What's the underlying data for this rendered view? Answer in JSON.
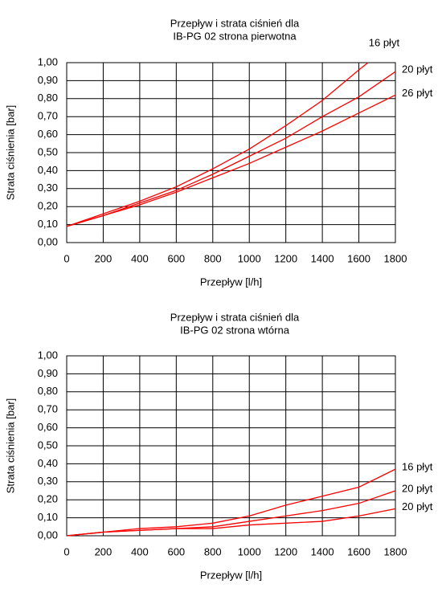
{
  "chart_data": [
    {
      "type": "line",
      "title": [
        "Przepływ i strata ciśnień dla",
        "IB-PG 02 strona pierwotna"
      ],
      "xlabel": "Przepływ [l/h]",
      "ylabel": "Strata ciśnienia [bar]",
      "xlim": [
        0,
        1800
      ],
      "xticks": [
        0,
        200,
        400,
        600,
        800,
        1000,
        1200,
        1400,
        1600,
        1800
      ],
      "ylim": [
        0,
        1
      ],
      "yticks": [
        {
          "value": 0,
          "label": "0,00"
        },
        {
          "value": 0.1,
          "label": "0,10"
        },
        {
          "value": 0.2,
          "label": "0,20"
        },
        {
          "value": 0.3,
          "label": "0,30"
        },
        {
          "value": 0.4,
          "label": "0,40"
        },
        {
          "value": 0.5,
          "label": "0,50"
        },
        {
          "value": 0.6,
          "label": "0,60"
        },
        {
          "value": 0.7,
          "label": "0,70"
        },
        {
          "value": 0.8,
          "label": "0,80"
        },
        {
          "value": 0.9,
          "label": "0,90"
        },
        {
          "value": 1,
          "label": "1,00"
        }
      ],
      "grid": true,
      "series": [
        {
          "name": "16 płyt",
          "color": "#ff0000",
          "x": [
            0,
            200,
            400,
            600,
            800,
            1000,
            1200,
            1400,
            1600,
            1650
          ],
          "values": [
            0.09,
            0.16,
            0.23,
            0.31,
            0.41,
            0.52,
            0.65,
            0.79,
            0.96,
            1.0
          ]
        },
        {
          "name": "20 płyt",
          "color": "#ff0000",
          "x": [
            0,
            200,
            400,
            600,
            800,
            1000,
            1200,
            1400,
            1600,
            1800
          ],
          "values": [
            0.09,
            0.15,
            0.22,
            0.29,
            0.38,
            0.48,
            0.58,
            0.7,
            0.81,
            0.95
          ]
        },
        {
          "name": "26 płyt",
          "color": "#ff0000",
          "x": [
            0,
            200,
            400,
            600,
            800,
            1000,
            1200,
            1400,
            1600,
            1800
          ],
          "values": [
            0.09,
            0.15,
            0.21,
            0.28,
            0.36,
            0.44,
            0.53,
            0.62,
            0.72,
            0.82
          ]
        }
      ]
    },
    {
      "type": "line",
      "title": [
        "Przepływ i strata ciśnień dla",
        "IB-PG 02 strona wtórna"
      ],
      "xlabel": "Przepływ [l/h]",
      "ylabel": "Strata ciśnienia [bar]",
      "xlim": [
        0,
        1800
      ],
      "xticks": [
        0,
        200,
        400,
        600,
        800,
        1000,
        1200,
        1400,
        1600,
        1800
      ],
      "ylim": [
        0,
        1
      ],
      "yticks": [
        {
          "value": 0,
          "label": "0,00"
        },
        {
          "value": 0.1,
          "label": "0,10"
        },
        {
          "value": 0.2,
          "label": "0,20"
        },
        {
          "value": 0.3,
          "label": "0,30"
        },
        {
          "value": 0.4,
          "label": "0,40"
        },
        {
          "value": 0.5,
          "label": "0,50"
        },
        {
          "value": 0.6,
          "label": "0,60"
        },
        {
          "value": 0.7,
          "label": "0,70"
        },
        {
          "value": 0.8,
          "label": "0,80"
        },
        {
          "value": 0.9,
          "label": "0,90"
        },
        {
          "value": 1,
          "label": "1,00"
        }
      ],
      "grid": true,
      "series": [
        {
          "name": "16 płyt",
          "color": "#ff0000",
          "x": [
            0,
            200,
            400,
            600,
            800,
            1000,
            1200,
            1400,
            1600,
            1800
          ],
          "values": [
            0,
            0.02,
            0.04,
            0.05,
            0.07,
            0.11,
            0.17,
            0.22,
            0.27,
            0.37
          ]
        },
        {
          "name": "20 płyt",
          "color": "#ff0000",
          "x": [
            0,
            200,
            400,
            600,
            800,
            1000,
            1200,
            1400,
            1600,
            1800
          ],
          "values": [
            0,
            0.02,
            0.03,
            0.04,
            0.05,
            0.08,
            0.11,
            0.14,
            0.18,
            0.25
          ]
        },
        {
          "name": "20 płyt",
          "color": "#ff0000",
          "x": [
            0,
            200,
            400,
            600,
            800,
            1000,
            1200,
            1400,
            1600,
            1800
          ],
          "values": [
            0,
            0.02,
            0.03,
            0.04,
            0.04,
            0.06,
            0.07,
            0.08,
            0.11,
            0.15
          ]
        }
      ]
    }
  ]
}
